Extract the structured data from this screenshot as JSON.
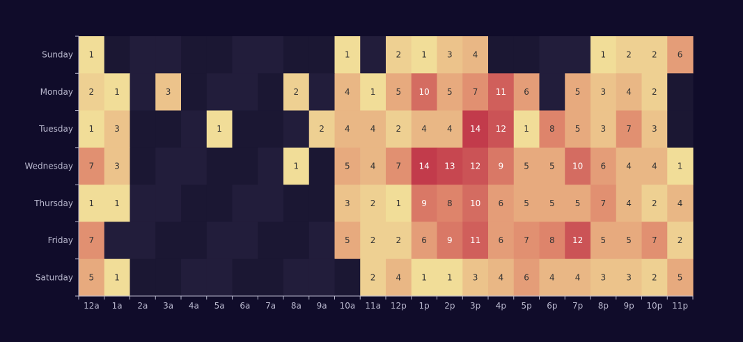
{
  "chart_data": {
    "type": "heatmap",
    "title": "",
    "xlabel": "",
    "ylabel": "",
    "x_categories": [
      "12a",
      "1a",
      "2a",
      "3a",
      "4a",
      "5a",
      "6a",
      "7a",
      "8a",
      "9a",
      "10a",
      "11a",
      "12p",
      "1p",
      "2p",
      "3p",
      "4p",
      "5p",
      "6p",
      "7p",
      "8p",
      "9p",
      "10p",
      "11p"
    ],
    "y_categories": [
      "Sunday",
      "Monday",
      "Tuesday",
      "Wednesday",
      "Thursday",
      "Friday",
      "Saturday"
    ],
    "values": [
      [
        1,
        0,
        0,
        0,
        0,
        0,
        0,
        0,
        0,
        0,
        1,
        0,
        2,
        1,
        3,
        4,
        0,
        0,
        0,
        0,
        1,
        2,
        2,
        6
      ],
      [
        2,
        1,
        0,
        3,
        0,
        0,
        0,
        0,
        2,
        0,
        4,
        1,
        5,
        10,
        5,
        7,
        11,
        6,
        0,
        5,
        3,
        4,
        2,
        0
      ],
      [
        1,
        3,
        0,
        0,
        0,
        1,
        0,
        0,
        0,
        2,
        4,
        4,
        2,
        4,
        4,
        14,
        12,
        1,
        8,
        5,
        3,
        7,
        3,
        0
      ],
      [
        7,
        3,
        0,
        0,
        0,
        0,
        0,
        0,
        1,
        0,
        5,
        4,
        7,
        14,
        13,
        12,
        9,
        5,
        5,
        10,
        6,
        4,
        4,
        1
      ],
      [
        1,
        1,
        0,
        0,
        0,
        0,
        0,
        0,
        0,
        0,
        3,
        2,
        1,
        9,
        8,
        10,
        6,
        5,
        5,
        5,
        7,
        4,
        2,
        4
      ],
      [
        7,
        0,
        0,
        0,
        0,
        0,
        0,
        0,
        0,
        0,
        5,
        2,
        2,
        6,
        9,
        11,
        6,
        7,
        8,
        12,
        5,
        5,
        7,
        2
      ],
      [
        5,
        1,
        0,
        0,
        0,
        0,
        0,
        0,
        0,
        0,
        0,
        2,
        4,
        1,
        1,
        3,
        4,
        6,
        4,
        4,
        3,
        3,
        2,
        5
      ]
    ],
    "value_range": [
      0,
      14
    ],
    "grid": false,
    "legend": "none",
    "colors": {
      "background": "#100c2a",
      "empty_cells": [
        "#1b1733",
        "#1f1a37",
        "#221d3b",
        "#252041"
      ],
      "scale_low": "#f1dd98",
      "scale_mid": "#e08a6e",
      "scale_high": "#c23b4b",
      "axis_line": "#b9b8ce",
      "label_text": "#b9b8ce",
      "cell_text_dark": "#333333",
      "cell_text_light": "#ffffff"
    }
  }
}
